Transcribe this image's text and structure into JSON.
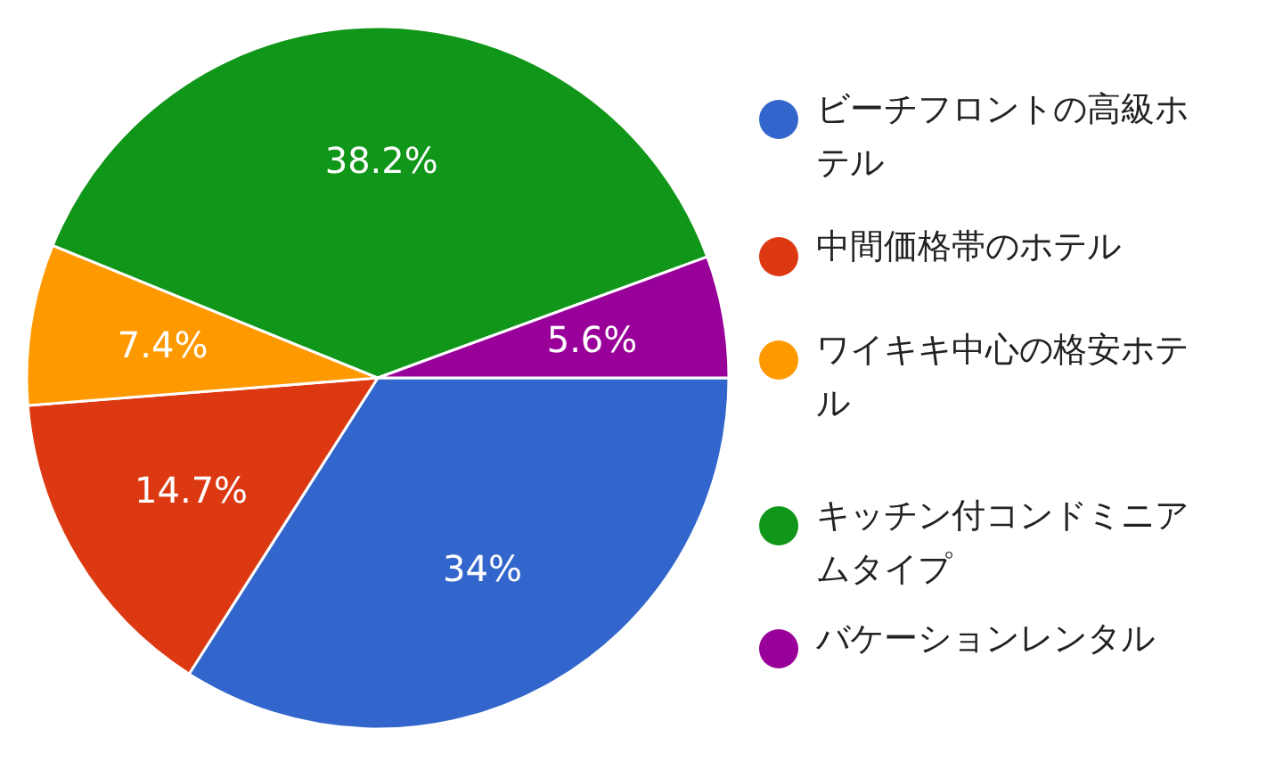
{
  "chart_data": {
    "type": "pie",
    "categories": [
      "ビーチフロントの高級ホテル",
      "中間価格帯のホテル",
      "ワイキキ中心の格安ホテル",
      "キッチン付コンドミニアムタイプ",
      "バケーションレンタル"
    ],
    "values": [
      34,
      14.7,
      7.4,
      38.2,
      5.6
    ],
    "colors": [
      "#3366cc",
      "#dc3912",
      "#ff9900",
      "#109618",
      "#990099"
    ],
    "value_labels": [
      "34%",
      "14.7%",
      "7.4%",
      "38.2%",
      "5.6%"
    ],
    "legend": "right"
  }
}
